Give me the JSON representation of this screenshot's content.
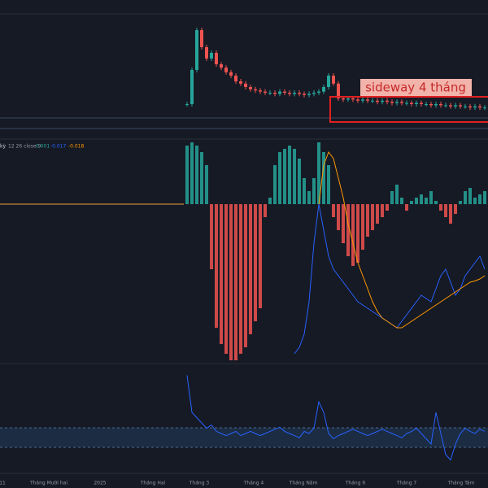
{
  "annotation": {
    "label": "sideway 4 tháng"
  },
  "indicator_legend": {
    "name": "kỳ",
    "params": "12 26 close 9",
    "values": [
      "0.001",
      "-0.017",
      "-0.018"
    ]
  },
  "time_axis": {
    "labels": [
      "11",
      "Tháng Mười hai",
      "2025",
      "Tháng Hai",
      "Tháng 3",
      "Tháng 4",
      "Tháng Năm",
      "Tháng 6",
      "Tháng 7",
      "Tháng Tám"
    ]
  },
  "price": {
    "close": [
      30,
      60,
      95,
      80,
      70,
      75,
      65,
      62,
      58,
      55,
      50,
      48,
      45,
      43,
      42,
      41,
      40,
      40,
      39,
      41,
      40,
      39,
      40,
      39,
      38,
      39,
      40,
      41,
      45,
      55,
      48,
      35,
      34,
      35,
      34,
      33,
      34,
      33,
      33,
      32,
      33,
      32,
      31,
      32,
      31,
      31,
      30,
      31,
      30,
      30,
      29,
      30,
      29,
      29,
      28,
      29,
      28,
      28,
      27,
      28,
      27,
      27
    ]
  },
  "macd": {
    "histogram": [
      90,
      95,
      90,
      80,
      60,
      -100,
      -190,
      -215,
      -230,
      -240,
      -240,
      -230,
      -220,
      -200,
      -180,
      -160,
      -20,
      10,
      60,
      80,
      85,
      90,
      85,
      70,
      40,
      20,
      40,
      95,
      80,
      60,
      -20,
      -40,
      -60,
      -80,
      -95,
      -90,
      -70,
      -50,
      -40,
      -30,
      -20,
      -10,
      20,
      30,
      10,
      -10,
      5,
      10,
      15,
      10,
      20,
      5,
      -10,
      -20,
      -30,
      -15,
      5,
      20,
      25,
      10,
      15,
      20
    ],
    "macd": [
      null,
      null,
      null,
      null,
      null,
      null,
      null,
      null,
      null,
      null,
      null,
      null,
      null,
      null,
      null,
      null,
      null,
      null,
      null,
      null,
      null,
      null,
      -230,
      -220,
      -200,
      -150,
      -60,
      0,
      -40,
      -80,
      -100,
      -110,
      -120,
      -130,
      -140,
      -150,
      -155,
      -160,
      -165,
      -170,
      -175,
      -180,
      -185,
      -190,
      -180,
      -170,
      -160,
      -150,
      -140,
      -145,
      -150,
      -130,
      -110,
      -100,
      -120,
      -140,
      -130,
      -110,
      -100,
      -90,
      -80,
      -100
    ],
    "signal": [
      null,
      null,
      null,
      null,
      null,
      null,
      null,
      null,
      null,
      null,
      null,
      null,
      null,
      null,
      null,
      null,
      null,
      null,
      null,
      null,
      null,
      null,
      null,
      null,
      null,
      null,
      null,
      0,
      60,
      80,
      70,
      40,
      10,
      -30,
      -60,
      -90,
      -110,
      -130,
      -150,
      -165,
      -175,
      -180,
      -185,
      -190,
      -190,
      -185,
      -180,
      -175,
      -170,
      -165,
      -160,
      -155,
      -150,
      -145,
      -140,
      -135,
      -130,
      -125,
      -120,
      -118,
      -115,
      -110
    ]
  },
  "oscillator": {
    "values": [
      95,
      60,
      55,
      50,
      45,
      48,
      42,
      40,
      38,
      40,
      42,
      38,
      40,
      42,
      40,
      38,
      40,
      42,
      44,
      46,
      42,
      40,
      38,
      36,
      42,
      40,
      45,
      70,
      60,
      40,
      35,
      38,
      40,
      42,
      44,
      42,
      40,
      38,
      40,
      42,
      44,
      42,
      40,
      38,
      36,
      40,
      42,
      45,
      40,
      35,
      30,
      60,
      40,
      20,
      15,
      30,
      40,
      45,
      42,
      40,
      44,
      42
    ]
  }
}
